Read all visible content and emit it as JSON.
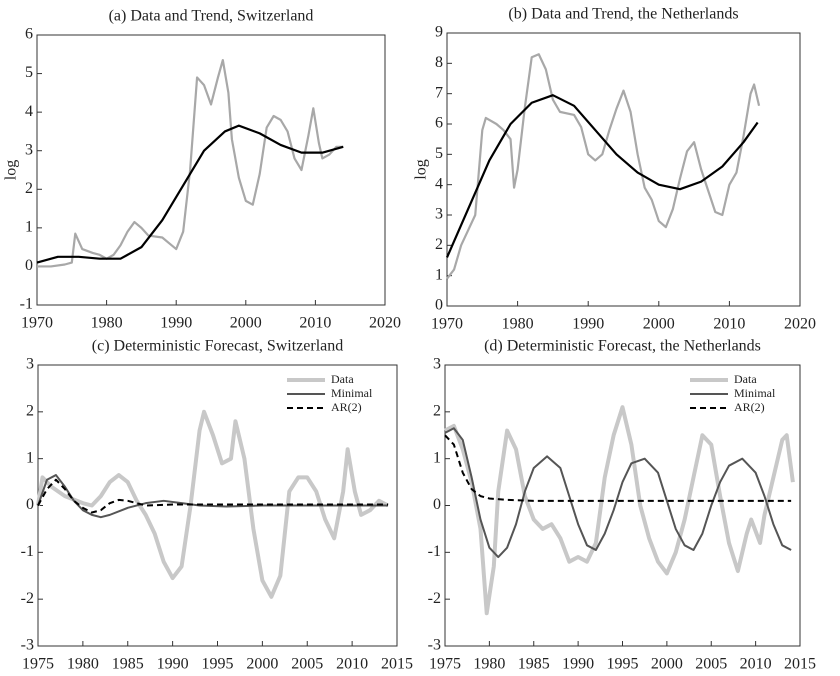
{
  "chart_data": [
    {
      "type": "line",
      "title": "(a) Data and Trend, Switzerland",
      "y_label": "log",
      "xlim": [
        1970,
        2020
      ],
      "xticks": [
        1970,
        1980,
        1990,
        2000,
        2010,
        2020
      ],
      "ylim": [
        -1,
        6
      ],
      "yticks": [
        -1,
        0,
        1,
        2,
        3,
        4,
        5,
        6
      ],
      "series": [
        {
          "color": "#a8a8a8",
          "x": [
            1970,
            1972,
            1974,
            1975,
            1975.5,
            1976.5,
            1978,
            1979,
            1980,
            1981,
            1982,
            1983,
            1984,
            1985,
            1986,
            1988,
            1989,
            1990,
            1991,
            1992,
            1993,
            1994,
            1995,
            1996,
            1996.7,
            1997.5,
            1998,
            1999,
            2000,
            2001,
            2002,
            2003,
            2004,
            2005,
            2006,
            2007,
            2008,
            2009,
            2009.7,
            2010.5,
            2011,
            2012,
            2013,
            2014
          ],
          "values": [
            0,
            0,
            0.05,
            0.1,
            0.85,
            0.45,
            0.35,
            0.3,
            0.2,
            0.3,
            0.55,
            0.9,
            1.15,
            1.0,
            0.8,
            0.75,
            0.6,
            0.45,
            0.9,
            2.5,
            4.9,
            4.7,
            4.2,
            4.9,
            5.35,
            4.5,
            3.3,
            2.3,
            1.7,
            1.6,
            2.4,
            3.6,
            3.9,
            3.8,
            3.5,
            2.8,
            2.5,
            3.4,
            4.1,
            3.2,
            2.8,
            2.9,
            3.1,
            3.1
          ]
        },
        {
          "color": "#000000",
          "x": [
            1970,
            1973,
            1976,
            1979,
            1982,
            1985,
            1988,
            1991,
            1994,
            1997,
            1999,
            2002,
            2005,
            2008,
            2011,
            2014
          ],
          "values": [
            0.1,
            0.25,
            0.25,
            0.2,
            0.2,
            0.5,
            1.2,
            2.1,
            3.0,
            3.5,
            3.65,
            3.45,
            3.15,
            2.95,
            2.95,
            3.1
          ]
        }
      ]
    },
    {
      "type": "line",
      "title": "(b) Data and Trend, the Netherlands",
      "y_label": "log",
      "xlim": [
        1970,
        2020
      ],
      "xticks": [
        1970,
        1980,
        1990,
        2000,
        2010,
        2020
      ],
      "ylim": [
        0,
        9
      ],
      "yticks": [
        0,
        1,
        2,
        3,
        4,
        5,
        6,
        7,
        8,
        9
      ],
      "series": [
        {
          "color": "#a8a8a8",
          "x": [
            1970,
            1971,
            1972,
            1973,
            1974,
            1975,
            1975.5,
            1977,
            1978,
            1979,
            1979.5,
            1980,
            1981,
            1982,
            1983,
            1984,
            1985,
            1986,
            1988,
            1989,
            1990,
            1991,
            1992,
            1993,
            1994,
            1995,
            1996,
            1997,
            1998,
            1999,
            2000,
            2001,
            2002,
            2003,
            2004,
            2005,
            2006,
            2007,
            2008,
            2009,
            2010,
            2011,
            2012,
            2013,
            2013.5,
            2014.2
          ],
          "values": [
            0.9,
            1.2,
            2.0,
            2.5,
            3.0,
            5.8,
            6.2,
            6.0,
            5.8,
            5.5,
            3.9,
            4.5,
            6.5,
            8.2,
            8.3,
            7.8,
            6.8,
            6.4,
            6.3,
            5.9,
            5.0,
            4.8,
            5.0,
            5.8,
            6.5,
            7.1,
            6.4,
            5.0,
            3.9,
            3.5,
            2.8,
            2.6,
            3.2,
            4.2,
            5.1,
            5.4,
            4.5,
            3.8,
            3.1,
            3.0,
            4.0,
            4.4,
            5.6,
            7.0,
            7.3,
            6.6
          ]
        },
        {
          "color": "#000000",
          "x": [
            1970,
            1973,
            1976,
            1979,
            1982,
            1985,
            1988,
            1991,
            1994,
            1997,
            2000,
            2003,
            2006,
            2009,
            2012,
            2014
          ],
          "values": [
            1.6,
            3.2,
            4.8,
            6.0,
            6.7,
            6.95,
            6.6,
            5.8,
            5.0,
            4.4,
            4.0,
            3.85,
            4.1,
            4.6,
            5.4,
            6.05
          ]
        }
      ]
    },
    {
      "type": "line",
      "title": "(c) Deterministic Forecast, Switzerland",
      "legend": "upper right",
      "xlim": [
        1975,
        2015
      ],
      "xticks": [
        1975,
        1980,
        1985,
        1990,
        1995,
        2000,
        2005,
        2010,
        2015
      ],
      "ylim": [
        -3,
        3
      ],
      "yticks": [
        -3,
        -2,
        -1,
        0,
        1,
        2,
        3
      ],
      "series": [
        {
          "name": "Data",
          "color": "#c8c8c8",
          "x": [
            1975,
            1975.5,
            1976.5,
            1978,
            1980,
            1981,
            1982,
            1983,
            1984,
            1985,
            1986,
            1987,
            1988,
            1989,
            1990,
            1991,
            1992,
            1993,
            1993.5,
            1994.5,
            1995.5,
            1996.5,
            1997,
            1998,
            1999,
            2000,
            2001,
            2002,
            2003,
            2004,
            2005,
            2006,
            2007,
            2008,
            2009,
            2009.5,
            2010.3,
            2011,
            2012,
            2013,
            2014
          ],
          "values": [
            0,
            0.6,
            0.4,
            0.2,
            0.05,
            0.0,
            0.2,
            0.5,
            0.65,
            0.5,
            0.1,
            -0.2,
            -0.6,
            -1.2,
            -1.55,
            -1.3,
            0.0,
            1.6,
            2.0,
            1.5,
            0.9,
            1.0,
            1.8,
            1.0,
            -0.5,
            -1.6,
            -1.95,
            -1.5,
            0.3,
            0.6,
            0.6,
            0.3,
            -0.3,
            -0.7,
            0.3,
            1.2,
            0.3,
            -0.2,
            -0.1,
            0.1,
            0.0
          ]
        },
        {
          "name": "Minimal",
          "color": "#555555",
          "x": [
            1975,
            1976,
            1977,
            1978,
            1979,
            1980,
            1981,
            1982,
            1983,
            1985,
            1987,
            1989,
            1991,
            1993,
            1996,
            2000,
            2005,
            2014
          ],
          "values": [
            0,
            0.55,
            0.65,
            0.4,
            0.1,
            -0.1,
            -0.2,
            -0.25,
            -0.2,
            -0.05,
            0.05,
            0.1,
            0.05,
            0.0,
            -0.02,
            0.0,
            0.0,
            0.0
          ]
        },
        {
          "name": "AR(2)",
          "color": "#000000",
          "style": "dashed",
          "x": [
            1975,
            1976,
            1977,
            1978,
            1979,
            1980,
            1981,
            1982,
            1983,
            1984,
            1985,
            1987,
            1990,
            1995,
            2000,
            2014
          ],
          "values": [
            0,
            0.35,
            0.55,
            0.35,
            0.1,
            -0.05,
            -0.15,
            -0.1,
            0.05,
            0.12,
            0.1,
            0.0,
            0.02,
            0.02,
            0.02,
            0.02
          ]
        }
      ]
    },
    {
      "type": "line",
      "title": "(d) Deterministic Forecast, the Netherlands",
      "legend": "upper right",
      "xlim": [
        1975,
        2015
      ],
      "xticks": [
        1975,
        1980,
        1985,
        1990,
        1995,
        2000,
        2005,
        2010,
        2015
      ],
      "ylim": [
        -3,
        3
      ],
      "yticks": [
        -3,
        -2,
        -1,
        0,
        1,
        2,
        3
      ],
      "series": [
        {
          "name": "Data",
          "color": "#c8c8c8",
          "x": [
            1975,
            1976,
            1977,
            1978,
            1979,
            1979.7,
            1980.5,
            1981,
            1982,
            1983,
            1984,
            1985,
            1986,
            1987,
            1988,
            1989,
            1990,
            1991,
            1992,
            1993,
            1994,
            1995,
            1996,
            1997,
            1998,
            1999,
            2000,
            2001,
            2002,
            2003,
            2004,
            2005,
            2006,
            2007,
            2008,
            2009,
            2009.5,
            2010.5,
            2011,
            2012,
            2013,
            2013.5,
            2014.2
          ],
          "values": [
            1.6,
            1.7,
            1.2,
            0.5,
            -0.5,
            -2.3,
            -1.3,
            0.3,
            1.6,
            1.2,
            0.2,
            -0.3,
            -0.5,
            -0.4,
            -0.7,
            -1.2,
            -1.1,
            -1.2,
            -0.8,
            0.6,
            1.5,
            2.1,
            1.3,
            0.0,
            -0.7,
            -1.2,
            -1.45,
            -1.0,
            -0.3,
            0.6,
            1.5,
            1.3,
            0.2,
            -0.8,
            -1.4,
            -0.6,
            -0.3,
            -0.8,
            -0.2,
            0.6,
            1.4,
            1.5,
            0.5
          ]
        },
        {
          "name": "Minimal",
          "color": "#555555",
          "x": [
            1975,
            1976,
            1977,
            1978,
            1979,
            1980,
            1981,
            1982,
            1983,
            1984,
            1985,
            1986.5,
            1988,
            1989,
            1990,
            1991,
            1992,
            1993,
            1994,
            1995,
            1996,
            1997.5,
            1999,
            2000,
            2001,
            2002,
            2003,
            2004,
            2005,
            2006,
            2007,
            2008.5,
            2010,
            2011,
            2012,
            2013,
            2014
          ],
          "values": [
            1.55,
            1.65,
            1.4,
            0.6,
            -0.3,
            -0.9,
            -1.1,
            -0.9,
            -0.4,
            0.3,
            0.8,
            1.05,
            0.8,
            0.2,
            -0.4,
            -0.85,
            -0.95,
            -0.6,
            -0.1,
            0.5,
            0.9,
            1.0,
            0.7,
            0.1,
            -0.5,
            -0.85,
            -0.95,
            -0.6,
            0.0,
            0.5,
            0.85,
            1.0,
            0.7,
            0.2,
            -0.4,
            -0.85,
            -0.95
          ]
        },
        {
          "name": "AR(2)",
          "color": "#000000",
          "style": "dashed",
          "x": [
            1975,
            1976,
            1977,
            1978,
            1979,
            1980,
            1982,
            1985,
            2014
          ],
          "values": [
            1.5,
            1.3,
            0.7,
            0.35,
            0.2,
            0.15,
            0.12,
            0.1,
            0.1
          ]
        }
      ]
    }
  ]
}
